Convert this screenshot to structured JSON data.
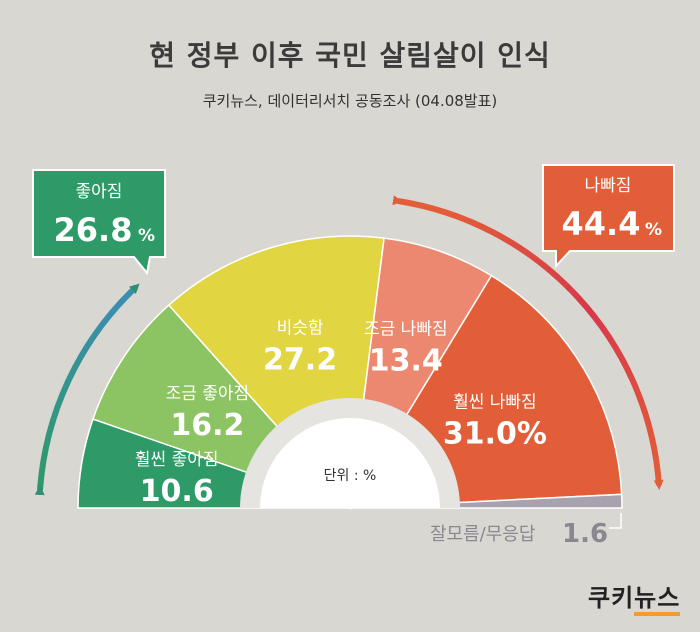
{
  "title": "현 정부 이후 국민 살림살이 인식",
  "subtitle": "쿠키뉴스, 데이터리서치 공동조사 (04.08발표)",
  "chart_data": {
    "type": "pie",
    "shape": "half-donut gauge",
    "unit_label": "단위 : %",
    "segments": [
      {
        "label": "훨씬 좋아짐",
        "value": 10.6,
        "display": "10.6",
        "color": "#2e9a67"
      },
      {
        "label": "조금 좋아짐",
        "value": 16.2,
        "display": "16.2",
        "color": "#8dc463"
      },
      {
        "label": "비슷함",
        "value": 27.2,
        "display": "27.2",
        "color": "#e1d542"
      },
      {
        "label": "조금 나빠짐",
        "value": 13.4,
        "display": "13.4",
        "color": "#ec8870"
      },
      {
        "label": "훨씬 나빠짐",
        "value": 31.0,
        "display": "31.0%",
        "color": "#e25e38"
      },
      {
        "label": "잘모름/무응답",
        "value": 1.6,
        "display": "1.6",
        "color": "#a7a2ad"
      }
    ],
    "summary_good": {
      "label": "좋아짐",
      "value": "26.8",
      "suffix": "%",
      "color": "#2e9a67"
    },
    "summary_bad": {
      "label": "나빠짐",
      "value": "44.4",
      "suffix": "%",
      "color": "#e25e38"
    }
  },
  "brand": {
    "part1": "쿠키",
    "part2": "뉴스"
  }
}
